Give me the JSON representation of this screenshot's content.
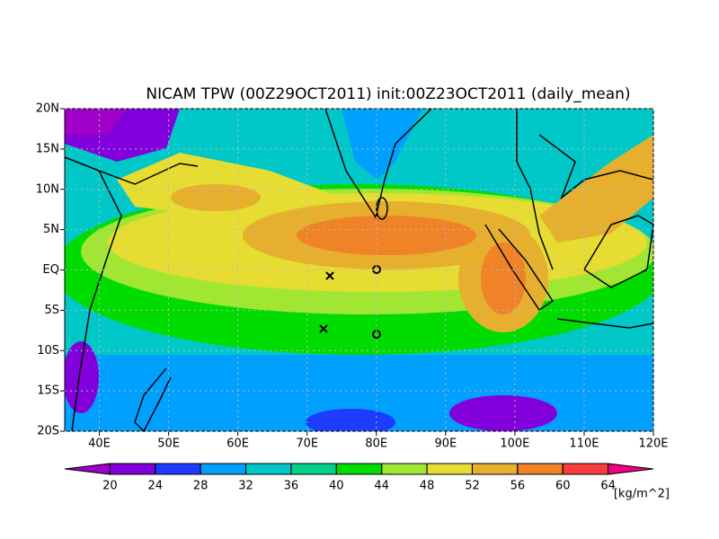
{
  "title": "NICAM TPW (00Z29OCT2011) init:00Z23OCT2011 (daily_mean)",
  "map": {
    "lonlim": [
      35,
      120
    ],
    "latlim": [
      -20,
      20
    ],
    "xticks": [
      {
        "value": 40,
        "label": "40E"
      },
      {
        "value": 50,
        "label": "50E"
      },
      {
        "value": 60,
        "label": "60E"
      },
      {
        "value": 70,
        "label": "70E"
      },
      {
        "value": 80,
        "label": "80E"
      },
      {
        "value": 90,
        "label": "90E"
      },
      {
        "value": 100,
        "label": "100E"
      },
      {
        "value": 110,
        "label": "110E"
      },
      {
        "value": 120,
        "label": "120E"
      }
    ],
    "yticks": [
      {
        "value": 20,
        "label": "20N"
      },
      {
        "value": 15,
        "label": "15N"
      },
      {
        "value": 10,
        "label": "10N"
      },
      {
        "value": 5,
        "label": "5N"
      },
      {
        "value": 0,
        "label": "EQ"
      },
      {
        "value": -5,
        "label": "5S"
      },
      {
        "value": -10,
        "label": "10S"
      },
      {
        "value": -15,
        "label": "15S"
      },
      {
        "value": -20,
        "label": "20S"
      }
    ]
  },
  "colorbar": {
    "levels": [
      20,
      24,
      28,
      32,
      36,
      40,
      44,
      48,
      52,
      56,
      60,
      64
    ],
    "colors": [
      "#a000c8",
      "#8200dc",
      "#1e3cff",
      "#00a0ff",
      "#00c8c8",
      "#00d28c",
      "#00dc00",
      "#a0e632",
      "#e6dc32",
      "#e6af2d",
      "#f08228",
      "#fa3c3c",
      "#f00082"
    ],
    "unit": "[kg/m^2]"
  }
}
